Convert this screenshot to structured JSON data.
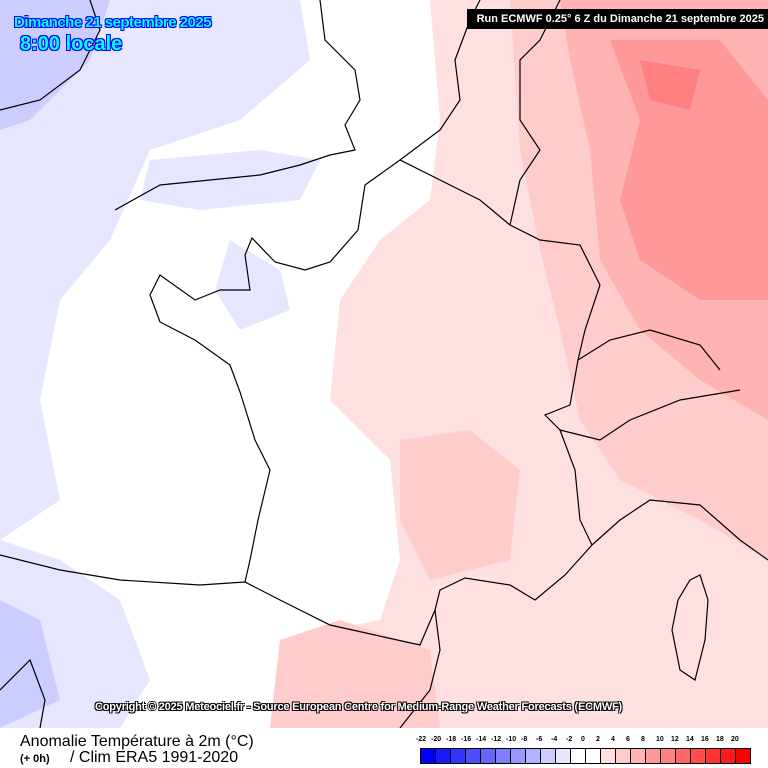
{
  "header": {
    "date": "Dimanche 21 septembre 2025",
    "time": "8:00 locale",
    "run": "Run ECMWF 0.25° 6 Z du Dimanche 21 septembre 2025"
  },
  "copyright": "Copyright © 2025 Meteociel.fr - Source European Centre for Medium-Range Weather Forecasts (ECMWF)",
  "footer": {
    "title": "Anomalie Température à 2m (°C)",
    "lead": "(+ 0h)",
    "clim": "/ Clim ERA5 1991-2020"
  },
  "legend": {
    "labels": [
      "-22",
      "-20",
      "-18",
      "-16",
      "-14",
      "-12",
      "-10",
      "-8",
      "-6",
      "-4",
      "-2",
      "0",
      "2",
      "4",
      "6",
      "8",
      "10",
      "12",
      "14",
      "16",
      "18",
      "20"
    ],
    "colors": [
      "#0000ff",
      "#1a1aff",
      "#3333ff",
      "#4d4dff",
      "#6666ff",
      "#8080ff",
      "#9999ff",
      "#b3b3ff",
      "#ccccff",
      "#e6e6ff",
      "#ffffff",
      "#ffffff",
      "#ffe0e0",
      "#ffcccc",
      "#ffb3b3",
      "#ff9999",
      "#ff8080",
      "#ff6666",
      "#ff4d4d",
      "#ff3333",
      "#ff1a1a",
      "#ff0000"
    ]
  }
}
